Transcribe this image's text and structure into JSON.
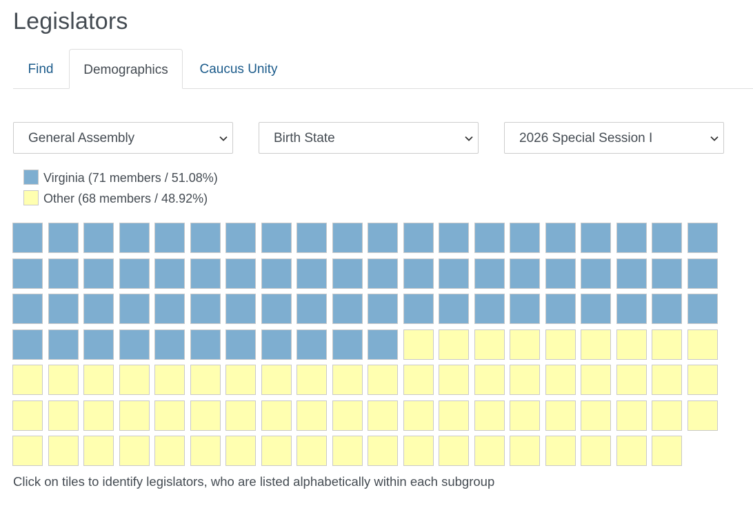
{
  "page": {
    "title": "Legislators"
  },
  "tabs": [
    {
      "label": "Find",
      "active": false
    },
    {
      "label": "Demographics",
      "active": true
    },
    {
      "label": "Caucus Unity",
      "active": false
    }
  ],
  "filters": {
    "body": "General Assembly",
    "attribute": "Birth State",
    "session": "2026 Special Session I"
  },
  "legend": [
    {
      "label": "Virginia (71 members / 51.08%)",
      "color": "#7eaed0"
    },
    {
      "label": "Other (68 members / 48.92%)",
      "color": "#ffffb0"
    }
  ],
  "chart_data": {
    "type": "waffle",
    "columns": 20,
    "groups": [
      {
        "name": "Virginia",
        "count": 71,
        "color": "#7eaed0"
      },
      {
        "name": "Other",
        "count": 68,
        "color": "#ffffb0"
      }
    ]
  },
  "caption": "Click on tiles to identify legislators, who are listed alphabetically within each subgroup"
}
